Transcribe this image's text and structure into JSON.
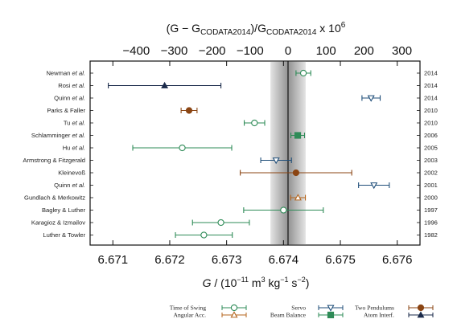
{
  "chart_data": {
    "type": "scatter",
    "xlabel": "G / (10⁻¹¹ m³ kg⁻¹ s⁻²)",
    "x2label": "(G − G_CODATA2014)/G_CODATA2014 x 10⁶",
    "xlim": [
      6.6706,
      6.6764
    ],
    "x_ticks": [
      6.671,
      6.672,
      6.673,
      6.674,
      6.675,
      6.676
    ],
    "x2_ticks": [
      -400,
      -300,
      -200,
      -100,
      0,
      100,
      200,
      300
    ],
    "reference_G": 6.67408,
    "reference_band": [
      6.67377,
      6.67439
    ],
    "measurements": [
      {
        "label": "Newman",
        "etal": true,
        "year": "2014",
        "G": 6.67435,
        "err": 0.00013,
        "method": "Time of Swing"
      },
      {
        "label": "Rosi",
        "etal": true,
        "year": "2014",
        "G": 6.67191,
        "err": 0.00099,
        "method": "Atom Interf."
      },
      {
        "label": "Quinn",
        "etal": true,
        "year": "2014",
        "G": 6.67554,
        "err": 0.00016,
        "method": "Servo"
      },
      {
        "label": "Parks & Faller",
        "etal": false,
        "year": "2010",
        "G": 6.67234,
        "err": 0.00014,
        "method": "Two Pendulums"
      },
      {
        "label": "Tu",
        "etal": true,
        "year": "2010",
        "G": 6.67349,
        "err": 0.00018,
        "method": "Time of Swing"
      },
      {
        "label": "Schlamminger",
        "etal": true,
        "year": "2006",
        "G": 6.67425,
        "err": 0.00012,
        "method": "Beam Balance"
      },
      {
        "label": "Hu",
        "etal": true,
        "year": "2005",
        "G": 6.67222,
        "err": 0.00087,
        "method": "Time of Swing"
      },
      {
        "label": "Armstrong & Fitzgerald",
        "etal": false,
        "year": "2003",
        "G": 6.67387,
        "err": 0.00027,
        "method": "Servo"
      },
      {
        "label": "Kleinevoß",
        "etal": false,
        "year": "2002",
        "G": 6.67422,
        "err": 0.00098,
        "method": "Two Pendulums"
      },
      {
        "label": "Quinn",
        "etal": true,
        "year": "2001",
        "G": 6.67559,
        "err": 0.00027,
        "method": "Servo"
      },
      {
        "label": "Gundlach & Merkowitz",
        "etal": false,
        "year": "2000",
        "G": 6.674255,
        "err": 0.00013,
        "method": "Angular Acc."
      },
      {
        "label": "Bagley & Luther",
        "etal": false,
        "year": "1997",
        "G": 6.674,
        "err": 0.0007,
        "method": "Time of Swing"
      },
      {
        "label": "Karagioz & Izmailov",
        "etal": false,
        "year": "1996",
        "G": 6.6729,
        "err": 0.0005,
        "method": "Time of Swing"
      },
      {
        "label": "Luther & Towler",
        "etal": false,
        "year": "1982",
        "G": 6.6726,
        "err": 0.0005,
        "method": "Time of Swing"
      }
    ],
    "legend": [
      {
        "name": "Time of Swing",
        "marker": "circle-open",
        "color": "#2e8b57"
      },
      {
        "name": "Angular Acc.",
        "marker": "triangle-up-open",
        "color": "#b5651d"
      },
      {
        "name": "Servo",
        "marker": "triangle-down-open",
        "color": "#1f4e79"
      },
      {
        "name": "Beam Balance",
        "marker": "square-filled",
        "color": "#2e8b57"
      },
      {
        "name": "Two Pendulums",
        "marker": "circle-filled",
        "color": "#8b4513"
      },
      {
        "name": "Atom Interf.",
        "marker": "triangle-up-filled",
        "color": "#1a2a4a"
      }
    ],
    "legend_placement": "bottom",
    "grid": false
  },
  "etal_text": "et al.",
  "title_parts": {
    "open": "(G − G",
    "sub1": "CODATA2014",
    "mid": ")/G",
    "sub2": "CODATA2014",
    "tail": " x 10",
    "sup": "6"
  },
  "xlabel_parts": {
    "g": "G",
    "a": " / (10",
    "s1": "−11",
    "b": " m",
    "s2": "3",
    "c": " kg",
    "s3": "−1",
    "d": " s",
    "s4": "−2",
    "e": ")"
  }
}
